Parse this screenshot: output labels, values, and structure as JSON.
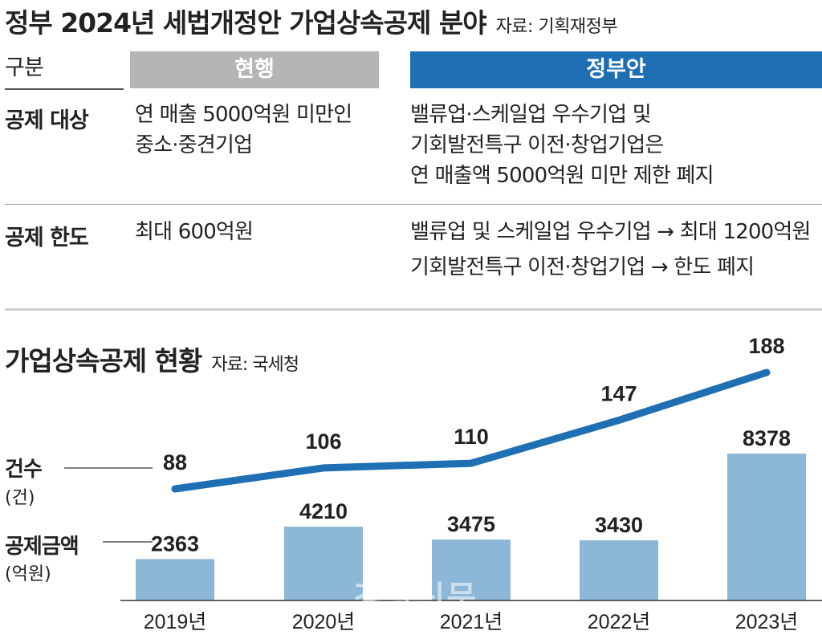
{
  "header": {
    "title": "정부 2024년 세법개정안 가업상속공제 분야",
    "source": "자료: 기획재정부"
  },
  "table": {
    "col_label": "구분",
    "col_current": "현행",
    "col_proposal": "정부안",
    "rows": [
      {
        "label": "공제 대상",
        "current": [
          "연 매출 5000억원 미만인",
          "중소·중견기업"
        ],
        "proposal": [
          "밸류업·스케일업 우수기업 및",
          "기회발전특구 이전·창업기업은",
          "연 매출액 5000억원 미만 제한 폐지"
        ]
      },
      {
        "label": "공제 한도",
        "current": [
          "최대 600억원"
        ],
        "proposal": [
          "밸류업 및 스케일업 우수기업  → 최대 1200억원",
          "기회발전특구 이전·창업기업 → 한도 폐지"
        ]
      }
    ]
  },
  "chart_section": {
    "title": "가업상속공제 현황",
    "source": "자료: 국세청",
    "legend_count_label": "건수",
    "legend_count_unit": "(건)",
    "legend_amount_label": "공제금액",
    "legend_amount_unit": "(억원)"
  },
  "watermark": "경향신문",
  "colors": {
    "line": "#1f6fb4",
    "bar": "#8cb7d6",
    "header_current": "#b5b5b5",
    "header_proposal": "#1f6fb4"
  },
  "chart_data": {
    "type": "bar",
    "categories": [
      "2019년",
      "2020년",
      "2021년",
      "2022년",
      "2023년"
    ],
    "series": [
      {
        "name": "공제금액",
        "type": "bar",
        "unit": "억원",
        "values": [
          2363,
          4210,
          3475,
          3430,
          8378
        ]
      },
      {
        "name": "건수",
        "type": "line",
        "unit": "건",
        "values": [
          88,
          106,
          110,
          147,
          188
        ]
      }
    ]
  }
}
